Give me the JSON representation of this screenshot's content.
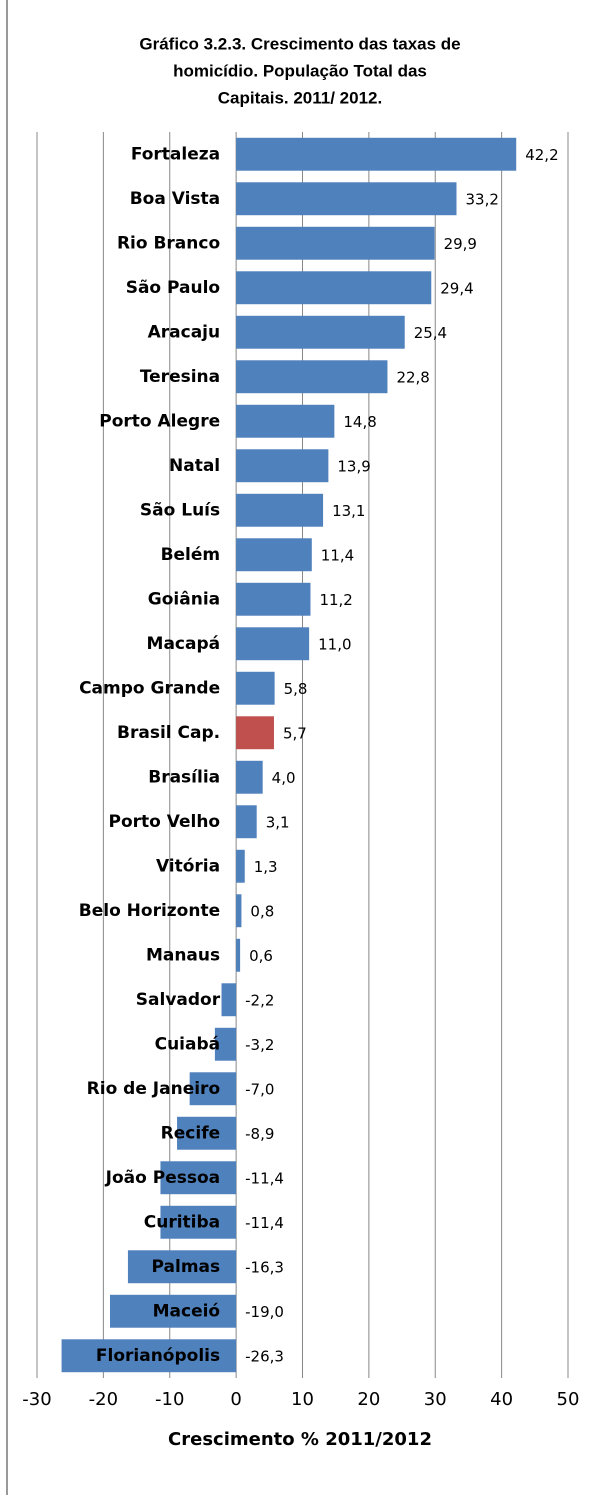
{
  "chart_data": {
    "type": "barh",
    "title": [
      "Gráfico 3.2.3. Crescimento das taxas de",
      "homicídio. População  Total das",
      "Capitais.  2011/ 2012."
    ],
    "x_label": "Crescimento % 2011/2012",
    "categories": [
      "Fortaleza",
      "Boa Vista",
      "Rio Branco",
      "São Paulo",
      "Aracaju",
      "Teresina",
      "Porto Alegre",
      "Natal",
      "São Luís",
      "Belém",
      "Goiânia",
      "Macapá",
      "Campo Grande",
      "Brasil Cap.",
      "Brasília",
      "Porto Velho",
      "Vitória",
      "Belo Horizonte",
      "Manaus",
      "Salvador",
      "Cuiabá",
      "Rio de Janeiro",
      "Recife",
      "João Pessoa",
      "Curitiba",
      "Palmas",
      "Maceió",
      "Florianópolis"
    ],
    "values": [
      42.2,
      33.2,
      29.9,
      29.4,
      25.4,
      22.8,
      14.8,
      13.9,
      13.1,
      11.4,
      11.2,
      11.0,
      5.8,
      5.7,
      4.0,
      3.1,
      1.3,
      0.8,
      0.6,
      -2.2,
      -3.2,
      -7.0,
      -8.9,
      -11.4,
      -11.4,
      -16.3,
      -19.0,
      -26.3
    ],
    "value_labels": [
      "42,2",
      "33,2",
      "29,9",
      "29,4",
      "25,4",
      "22,8",
      "14,8",
      "13,9",
      "13,1",
      "11,4",
      "11,2",
      "11,0",
      "5,8",
      "5,7",
      "4,0",
      "3,1",
      "1,3",
      "0,8",
      "0,6",
      "-2,2",
      "-3,2",
      "-7,0",
      "-8,9",
      "-11,4",
      "-11,4",
      "-16,3",
      "-19,0",
      "-26,3"
    ],
    "colors": [
      "#4f81bd",
      "#4f81bd",
      "#4f81bd",
      "#4f81bd",
      "#4f81bd",
      "#4f81bd",
      "#4f81bd",
      "#4f81bd",
      "#4f81bd",
      "#4f81bd",
      "#4f81bd",
      "#4f81bd",
      "#4f81bd",
      "#c0504d",
      "#4f81bd",
      "#4f81bd",
      "#4f81bd",
      "#4f81bd",
      "#4f81bd",
      "#4f81bd",
      "#4f81bd",
      "#4f81bd",
      "#4f81bd",
      "#4f81bd",
      "#4f81bd",
      "#4f81bd",
      "#4f81bd",
      "#4f81bd"
    ],
    "xlim": [
      -30,
      50
    ],
    "xticks": [
      -30,
      -20,
      -10,
      0,
      10,
      20,
      30,
      40,
      50
    ],
    "grid": true
  }
}
